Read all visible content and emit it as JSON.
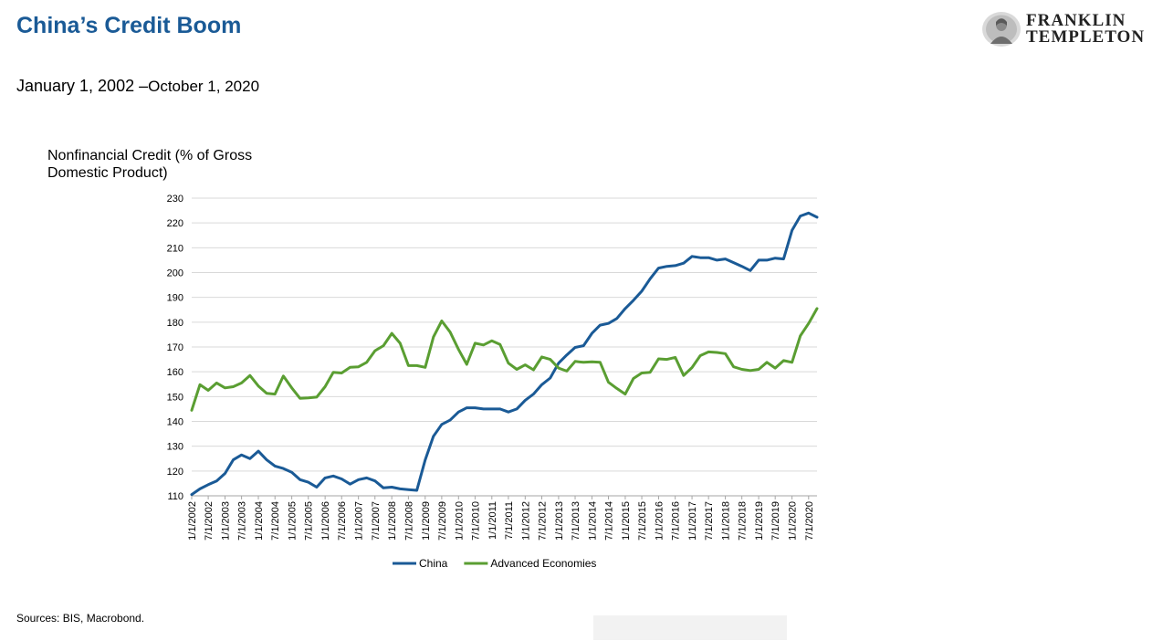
{
  "header": {
    "title": "China’s Credit Boom",
    "subtitle_part1": "January 1, 2002 –",
    "subtitle_part2": "October 1, 2020",
    "logo_line1": "FRANKLIN",
    "logo_line2": "TEMPLETON"
  },
  "footer": {
    "source": "Sources: BIS, Macrobond."
  },
  "colors": {
    "china": "#1a5a96",
    "advanced": "#5a9e32",
    "grid": "#d9d9d9",
    "title": "#1a5a96"
  },
  "chart_data": {
    "type": "line",
    "title": "",
    "xlabel": "",
    "ylabel": "Nonfinancial Credit (% of Gross Domestic Product)",
    "ylim": [
      110,
      230
    ],
    "yticks": [
      110,
      120,
      130,
      140,
      150,
      160,
      170,
      180,
      190,
      200,
      210,
      220,
      230
    ],
    "grid": true,
    "legend_position": "bottom",
    "x_tick_labels": [
      "1/1/2002",
      "7/1/2002",
      "1/1/2003",
      "7/1/2003",
      "1/1/2004",
      "7/1/2004",
      "1/1/2005",
      "7/1/2005",
      "1/1/2006",
      "7/1/2006",
      "1/1/2007",
      "7/1/2007",
      "1/1/2008",
      "7/1/2008",
      "1/1/2009",
      "7/1/2009",
      "1/1/2010",
      "7/1/2010",
      "1/1/2011",
      "7/1/2011",
      "1/1/2012",
      "7/1/2012",
      "1/1/2013",
      "7/1/2013",
      "1/1/2014",
      "7/1/2014",
      "1/1/2015",
      "7/1/2015",
      "1/1/2016",
      "7/1/2016",
      "1/1/2017",
      "7/1/2017",
      "1/1/2018",
      "7/1/2018",
      "1/1/2019",
      "7/1/2019",
      "1/1/2020",
      "7/1/2020"
    ],
    "x": [
      "2002-01-01",
      "2002-04-01",
      "2002-07-01",
      "2002-10-01",
      "2003-01-01",
      "2003-04-01",
      "2003-07-01",
      "2003-10-01",
      "2004-01-01",
      "2004-04-01",
      "2004-07-01",
      "2004-10-01",
      "2005-01-01",
      "2005-04-01",
      "2005-07-01",
      "2005-10-01",
      "2006-01-01",
      "2006-04-01",
      "2006-07-01",
      "2006-10-01",
      "2007-01-01",
      "2007-04-01",
      "2007-07-01",
      "2007-10-01",
      "2008-01-01",
      "2008-04-01",
      "2008-07-01",
      "2008-10-01",
      "2009-01-01",
      "2009-04-01",
      "2009-07-01",
      "2009-10-01",
      "2010-01-01",
      "2010-04-01",
      "2010-07-01",
      "2010-10-01",
      "2011-01-01",
      "2011-04-01",
      "2011-07-01",
      "2011-10-01",
      "2012-01-01",
      "2012-04-01",
      "2012-07-01",
      "2012-10-01",
      "2013-01-01",
      "2013-04-01",
      "2013-07-01",
      "2013-10-01",
      "2014-01-01",
      "2014-04-01",
      "2014-07-01",
      "2014-10-01",
      "2015-01-01",
      "2015-04-01",
      "2015-07-01",
      "2015-10-01",
      "2016-01-01",
      "2016-04-01",
      "2016-07-01",
      "2016-10-01",
      "2017-01-01",
      "2017-04-01",
      "2017-07-01",
      "2017-10-01",
      "2018-01-01",
      "2018-04-01",
      "2018-07-01",
      "2018-10-01",
      "2019-01-01",
      "2019-04-01",
      "2019-07-01",
      "2019-10-01",
      "2020-01-01",
      "2020-04-01",
      "2020-07-01",
      "2020-10-01"
    ],
    "series": [
      {
        "name": "China",
        "values": [
          110.5,
          112.8,
          114.5,
          116,
          119,
          124.5,
          126.5,
          125,
          128,
          124.5,
          122,
          121,
          119.5,
          116.5,
          115.5,
          113.5,
          117.2,
          118,
          116.8,
          114.7,
          116.5,
          117.2,
          116,
          113.2,
          113.5,
          112.8,
          112.5,
          112.2,
          124.5,
          134,
          138.8,
          140.5,
          143.8,
          145.5,
          145.5,
          145,
          145,
          145,
          143.8,
          145,
          148.5,
          151,
          154.8,
          157.5,
          163.5,
          166.8,
          169.8,
          170.5,
          175.5,
          178.8,
          179.5,
          181.5,
          185.5,
          188.8,
          192.5,
          197.5,
          201.8,
          202.5,
          202.8,
          203.8,
          206.5,
          206,
          206,
          205,
          205.5,
          204,
          202.5,
          200.8,
          205,
          205,
          205.8,
          205.5,
          217,
          222.8,
          224,
          222.3
        ]
      },
      {
        "name": "Advanced Economies",
        "values": [
          144.5,
          154.8,
          152.5,
          155.5,
          153.5,
          154,
          155.5,
          158.5,
          154.3,
          151.3,
          151,
          158.3,
          153.5,
          149.3,
          149.5,
          149.8,
          154,
          159.8,
          159.5,
          161.8,
          162,
          163.8,
          168.5,
          170.5,
          175.5,
          171.5,
          162.5,
          162.5,
          161.8,
          174,
          180.5,
          176,
          169,
          163,
          171.5,
          170.8,
          172.5,
          171,
          163.5,
          161,
          162.8,
          160.8,
          166,
          165,
          161.5,
          160.3,
          164.2,
          163.8,
          164,
          163.8,
          155.8,
          153.3,
          151,
          157.3,
          159.5,
          159.8,
          165.2,
          165,
          165.8,
          158.5,
          161.7,
          166.5,
          168,
          167.8,
          167.3,
          162,
          161,
          160.5,
          161,
          163.8,
          161.5,
          164.5,
          163.8,
          174.5,
          179.5,
          185.5
        ]
      }
    ]
  }
}
